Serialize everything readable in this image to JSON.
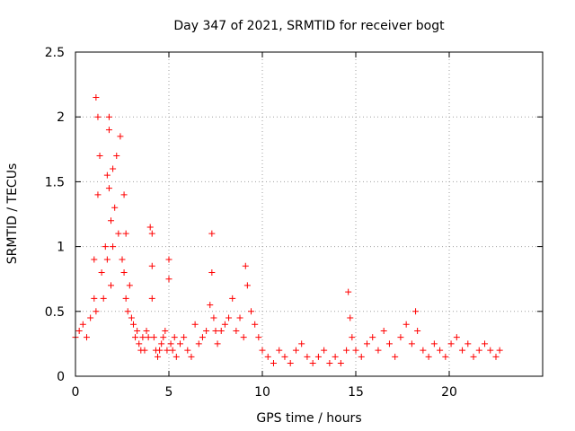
{
  "chart_data": {
    "type": "scatter",
    "title": "Day 347 of 2021, SRMTID for receiver bogt",
    "xlabel": "GPS time / hours",
    "ylabel": "SRMTID / TECUs",
    "xlim": [
      0,
      25
    ],
    "ylim": [
      0,
      2.5
    ],
    "xticks": [
      0,
      5,
      10,
      15,
      20
    ],
    "yticks": [
      0,
      0.5,
      1,
      1.5,
      2,
      2.5
    ],
    "xtick_labels": [
      "0",
      "5",
      "10",
      "15",
      "20"
    ],
    "ytick_labels": [
      "0",
      "0.5",
      "1",
      "1.5",
      "2",
      "2.5"
    ],
    "grid": true,
    "marker": "+",
    "color": "#ff0000",
    "series": [
      {
        "name": "SRMTID",
        "x": [
          0.0,
          0.2,
          0.4,
          0.6,
          0.8,
          1.0,
          1.0,
          1.1,
          1.1,
          1.2,
          1.2,
          1.3,
          1.4,
          1.5,
          1.6,
          1.7,
          1.7,
          1.8,
          1.8,
          1.8,
          1.9,
          1.9,
          2.0,
          2.0,
          2.1,
          2.2,
          2.3,
          2.4,
          2.5,
          2.6,
          2.6,
          2.7,
          2.7,
          2.8,
          2.9,
          3.0,
          3.1,
          3.2,
          3.3,
          3.4,
          3.5,
          3.6,
          3.7,
          3.8,
          3.9,
          4.0,
          4.1,
          4.1,
          4.1,
          4.2,
          4.3,
          4.4,
          4.5,
          4.6,
          4.7,
          4.8,
          4.9,
          5.0,
          5.0,
          5.1,
          5.2,
          5.3,
          5.4,
          5.6,
          5.8,
          6.0,
          6.2,
          6.4,
          6.6,
          6.8,
          7.0,
          7.2,
          7.3,
          7.3,
          7.4,
          7.5,
          7.6,
          7.8,
          8.0,
          8.2,
          8.4,
          8.6,
          8.8,
          9.0,
          9.1,
          9.2,
          9.4,
          9.6,
          9.8,
          10.0,
          10.3,
          10.6,
          10.9,
          11.2,
          11.5,
          11.8,
          12.1,
          12.4,
          12.7,
          13.0,
          13.3,
          13.6,
          13.9,
          14.2,
          14.5,
          14.6,
          14.7,
          14.8,
          15.0,
          15.3,
          15.6,
          15.9,
          16.2,
          16.5,
          16.8,
          17.1,
          17.4,
          17.7,
          18.0,
          18.2,
          18.3,
          18.6,
          18.9,
          19.2,
          19.5,
          19.8,
          20.1,
          20.4,
          20.7,
          21.0,
          21.3,
          21.6,
          21.9,
          22.2,
          22.5,
          22.7
        ],
        "y": [
          0.3,
          0.35,
          0.4,
          0.3,
          0.45,
          0.6,
          0.9,
          0.5,
          2.15,
          2.0,
          1.4,
          1.7,
          0.8,
          0.6,
          1.0,
          1.55,
          0.9,
          2.0,
          1.9,
          1.45,
          1.2,
          0.7,
          1.6,
          1.0,
          1.3,
          1.7,
          1.1,
          1.85,
          0.9,
          1.4,
          0.8,
          0.6,
          1.1,
          0.5,
          0.7,
          0.45,
          0.4,
          0.3,
          0.35,
          0.25,
          0.2,
          0.3,
          0.2,
          0.35,
          0.3,
          1.15,
          1.1,
          0.85,
          0.6,
          0.3,
          0.2,
          0.15,
          0.2,
          0.25,
          0.3,
          0.35,
          0.2,
          0.9,
          0.75,
          0.25,
          0.2,
          0.3,
          0.15,
          0.25,
          0.3,
          0.2,
          0.15,
          0.4,
          0.25,
          0.3,
          0.35,
          0.55,
          1.1,
          0.8,
          0.45,
          0.35,
          0.25,
          0.35,
          0.4,
          0.45,
          0.6,
          0.35,
          0.45,
          0.3,
          0.85,
          0.7,
          0.5,
          0.4,
          0.3,
          0.2,
          0.15,
          0.1,
          0.2,
          0.15,
          0.1,
          0.2,
          0.25,
          0.15,
          0.1,
          0.15,
          0.2,
          0.1,
          0.15,
          0.1,
          0.2,
          0.65,
          0.45,
          0.3,
          0.2,
          0.15,
          0.25,
          0.3,
          0.2,
          0.35,
          0.25,
          0.15,
          0.3,
          0.4,
          0.25,
          0.5,
          0.35,
          0.2,
          0.15,
          0.25,
          0.2,
          0.15,
          0.25,
          0.3,
          0.2,
          0.25,
          0.15,
          0.2,
          0.25,
          0.2,
          0.15,
          0.2
        ]
      }
    ]
  }
}
